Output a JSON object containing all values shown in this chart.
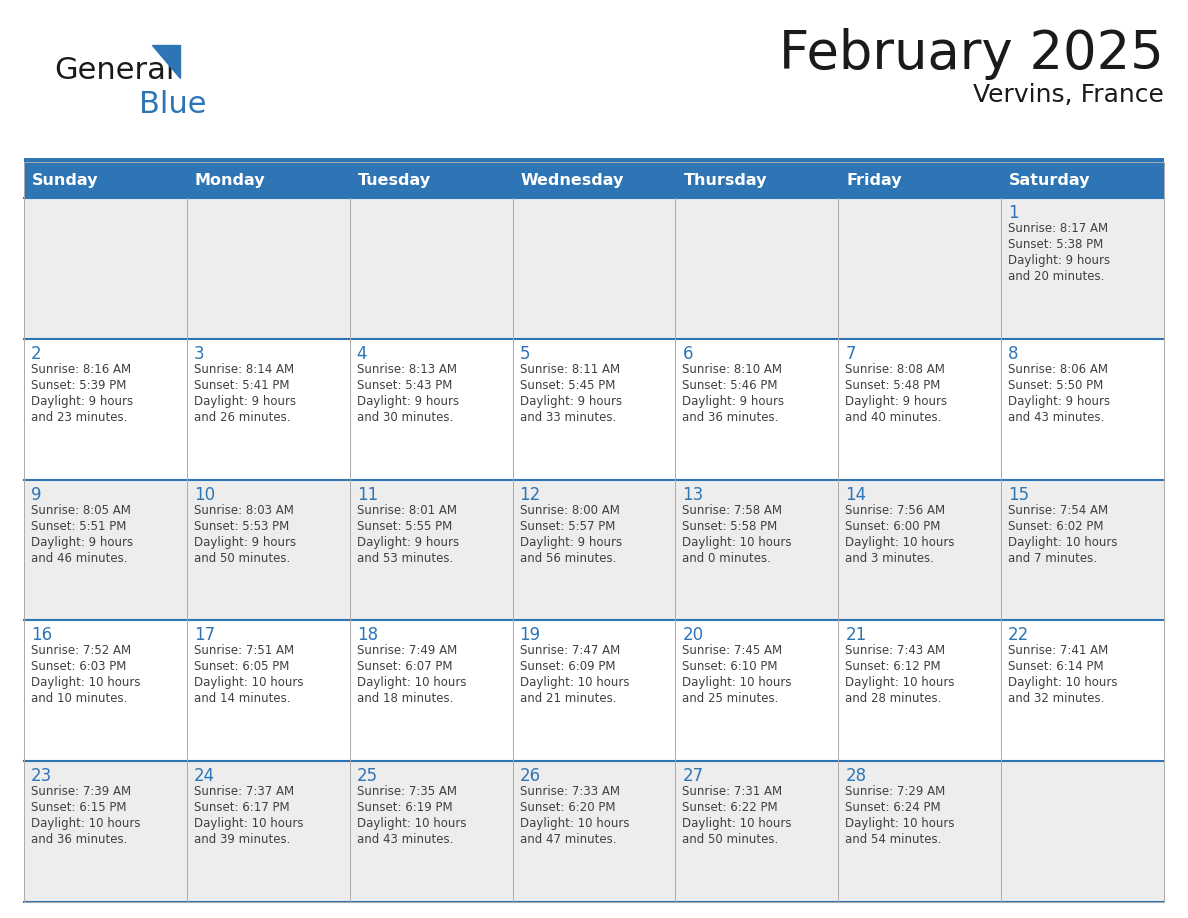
{
  "title": "February 2025",
  "subtitle": "Vervins, France",
  "header_bg": "#2E75B6",
  "header_text_color": "#FFFFFF",
  "days_of_week": [
    "Sunday",
    "Monday",
    "Tuesday",
    "Wednesday",
    "Thursday",
    "Friday",
    "Saturday"
  ],
  "cell_bg_white": "#FFFFFF",
  "cell_bg_gray": "#EDEDED",
  "border_color": "#2E75B6",
  "row_border_color": "#2E75B6",
  "col_border_color": "#AAAAAA",
  "text_color": "#404040",
  "day_num_color": "#2E75B6",
  "calendar": [
    [
      {
        "day": null,
        "sunrise": null,
        "sunset": null,
        "daylight": null
      },
      {
        "day": null,
        "sunrise": null,
        "sunset": null,
        "daylight": null
      },
      {
        "day": null,
        "sunrise": null,
        "sunset": null,
        "daylight": null
      },
      {
        "day": null,
        "sunrise": null,
        "sunset": null,
        "daylight": null
      },
      {
        "day": null,
        "sunrise": null,
        "sunset": null,
        "daylight": null
      },
      {
        "day": null,
        "sunrise": null,
        "sunset": null,
        "daylight": null
      },
      {
        "day": 1,
        "sunrise": "8:17 AM",
        "sunset": "5:38 PM",
        "daylight": "9 hours\nand 20 minutes."
      }
    ],
    [
      {
        "day": 2,
        "sunrise": "8:16 AM",
        "sunset": "5:39 PM",
        "daylight": "9 hours\nand 23 minutes."
      },
      {
        "day": 3,
        "sunrise": "8:14 AM",
        "sunset": "5:41 PM",
        "daylight": "9 hours\nand 26 minutes."
      },
      {
        "day": 4,
        "sunrise": "8:13 AM",
        "sunset": "5:43 PM",
        "daylight": "9 hours\nand 30 minutes."
      },
      {
        "day": 5,
        "sunrise": "8:11 AM",
        "sunset": "5:45 PM",
        "daylight": "9 hours\nand 33 minutes."
      },
      {
        "day": 6,
        "sunrise": "8:10 AM",
        "sunset": "5:46 PM",
        "daylight": "9 hours\nand 36 minutes."
      },
      {
        "day": 7,
        "sunrise": "8:08 AM",
        "sunset": "5:48 PM",
        "daylight": "9 hours\nand 40 minutes."
      },
      {
        "day": 8,
        "sunrise": "8:06 AM",
        "sunset": "5:50 PM",
        "daylight": "9 hours\nand 43 minutes."
      }
    ],
    [
      {
        "day": 9,
        "sunrise": "8:05 AM",
        "sunset": "5:51 PM",
        "daylight": "9 hours\nand 46 minutes."
      },
      {
        "day": 10,
        "sunrise": "8:03 AM",
        "sunset": "5:53 PM",
        "daylight": "9 hours\nand 50 minutes."
      },
      {
        "day": 11,
        "sunrise": "8:01 AM",
        "sunset": "5:55 PM",
        "daylight": "9 hours\nand 53 minutes."
      },
      {
        "day": 12,
        "sunrise": "8:00 AM",
        "sunset": "5:57 PM",
        "daylight": "9 hours\nand 56 minutes."
      },
      {
        "day": 13,
        "sunrise": "7:58 AM",
        "sunset": "5:58 PM",
        "daylight": "10 hours\nand 0 minutes."
      },
      {
        "day": 14,
        "sunrise": "7:56 AM",
        "sunset": "6:00 PM",
        "daylight": "10 hours\nand 3 minutes."
      },
      {
        "day": 15,
        "sunrise": "7:54 AM",
        "sunset": "6:02 PM",
        "daylight": "10 hours\nand 7 minutes."
      }
    ],
    [
      {
        "day": 16,
        "sunrise": "7:52 AM",
        "sunset": "6:03 PM",
        "daylight": "10 hours\nand 10 minutes."
      },
      {
        "day": 17,
        "sunrise": "7:51 AM",
        "sunset": "6:05 PM",
        "daylight": "10 hours\nand 14 minutes."
      },
      {
        "day": 18,
        "sunrise": "7:49 AM",
        "sunset": "6:07 PM",
        "daylight": "10 hours\nand 18 minutes."
      },
      {
        "day": 19,
        "sunrise": "7:47 AM",
        "sunset": "6:09 PM",
        "daylight": "10 hours\nand 21 minutes."
      },
      {
        "day": 20,
        "sunrise": "7:45 AM",
        "sunset": "6:10 PM",
        "daylight": "10 hours\nand 25 minutes."
      },
      {
        "day": 21,
        "sunrise": "7:43 AM",
        "sunset": "6:12 PM",
        "daylight": "10 hours\nand 28 minutes."
      },
      {
        "day": 22,
        "sunrise": "7:41 AM",
        "sunset": "6:14 PM",
        "daylight": "10 hours\nand 32 minutes."
      }
    ],
    [
      {
        "day": 23,
        "sunrise": "7:39 AM",
        "sunset": "6:15 PM",
        "daylight": "10 hours\nand 36 minutes."
      },
      {
        "day": 24,
        "sunrise": "7:37 AM",
        "sunset": "6:17 PM",
        "daylight": "10 hours\nand 39 minutes."
      },
      {
        "day": 25,
        "sunrise": "7:35 AM",
        "sunset": "6:19 PM",
        "daylight": "10 hours\nand 43 minutes."
      },
      {
        "day": 26,
        "sunrise": "7:33 AM",
        "sunset": "6:20 PM",
        "daylight": "10 hours\nand 47 minutes."
      },
      {
        "day": 27,
        "sunrise": "7:31 AM",
        "sunset": "6:22 PM",
        "daylight": "10 hours\nand 50 minutes."
      },
      {
        "day": 28,
        "sunrise": "7:29 AM",
        "sunset": "6:24 PM",
        "daylight": "10 hours\nand 54 minutes."
      },
      {
        "day": null,
        "sunrise": null,
        "sunset": null,
        "daylight": null
      }
    ]
  ],
  "logo_text_general": "General",
  "logo_text_blue": "Blue",
  "logo_color_general": "#1a1a1a",
  "logo_color_blue": "#2E75B6",
  "logo_triangle_color": "#2E75B6",
  "fig_width": 11.88,
  "fig_height": 9.18,
  "dpi": 100
}
